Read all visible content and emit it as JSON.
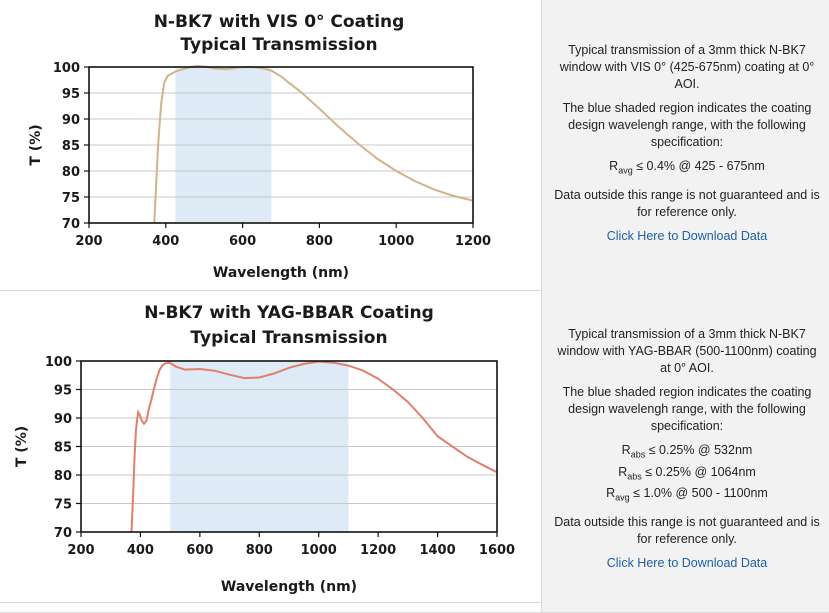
{
  "chart_data": [
    {
      "type": "line",
      "title": "N-BK7 with VIS 0° Coating",
      "subtitle": "Typical Transmission",
      "xlabel": "Wavelength (nm)",
      "ylabel": "T (%)",
      "xlim": [
        200,
        1200
      ],
      "ylim": [
        70,
        100
      ],
      "xticks": [
        200,
        400,
        600,
        800,
        1000,
        1200
      ],
      "yticks": [
        70,
        75,
        80,
        85,
        90,
        95,
        100
      ],
      "grid": true,
      "line_color": "#d2b48c",
      "shade_color": "#deebf6",
      "shaded_region": [
        425,
        675
      ],
      "series": [
        {
          "x": [
            370,
            374,
            380,
            388,
            396,
            405,
            415,
            425,
            440,
            460,
            480,
            500,
            530,
            560,
            590,
            620,
            650,
            675,
            700,
            720,
            750,
            800,
            850,
            900,
            950,
            1000,
            1050,
            1100,
            1150,
            1200
          ],
          "y": [
            70,
            76,
            85,
            93,
            97,
            98.3,
            98.7,
            99.1,
            99.5,
            99.9,
            100.2,
            100.1,
            99.7,
            99.6,
            99.9,
            100.0,
            99.8,
            99.3,
            98.2,
            97.0,
            95.3,
            92.0,
            88.5,
            85.3,
            82.4,
            80.0,
            78.0,
            76.4,
            75.2,
            74.3
          ]
        }
      ]
    },
    {
      "type": "line",
      "title": "N-BK7 with YAG-BBAR Coating",
      "subtitle": "Typical Transmission",
      "xlabel": "Wavelength (nm)",
      "ylabel": "T (%)",
      "xlim": [
        200,
        1600
      ],
      "ylim": [
        70,
        100
      ],
      "xticks": [
        200,
        400,
        600,
        800,
        1000,
        1200,
        1400,
        1600
      ],
      "yticks": [
        70,
        75,
        80,
        85,
        90,
        95,
        100
      ],
      "grid": true,
      "line_color": "#e0806b",
      "shade_color": "#deebf6",
      "shaded_region": [
        500,
        1100
      ],
      "series": [
        {
          "x": [
            370,
            375,
            380,
            385,
            392,
            398,
            405,
            412,
            420,
            428,
            436,
            445,
            455,
            465,
            475,
            485,
            495,
            505,
            520,
            550,
            600,
            650,
            700,
            750,
            800,
            850,
            900,
            950,
            1000,
            1050,
            1100,
            1150,
            1200,
            1250,
            1300,
            1350,
            1400,
            1450,
            1500,
            1550,
            1600
          ],
          "y": [
            70,
            76,
            83,
            88,
            91,
            90.5,
            89.5,
            89.0,
            89.5,
            91.5,
            93.0,
            95.0,
            97.0,
            98.5,
            99.3,
            99.6,
            99.7,
            99.5,
            99.0,
            98.5,
            98.6,
            98.3,
            97.6,
            97.0,
            97.1,
            97.8,
            98.8,
            99.5,
            99.9,
            99.7,
            99.2,
            98.3,
            96.9,
            95.0,
            92.8,
            90.0,
            86.8,
            85.0,
            83.2,
            81.8,
            80.5
          ]
        }
      ]
    }
  ],
  "descriptions": [
    {
      "intro": "Typical transmission of a 3mm thick N-BK7 window with VIS 0° (425-675nm) coating at 0° AOI.",
      "shade_note": "The blue shaded region indicates the coating design wavelengh range, with the following specification:",
      "specs": [
        {
          "sym": "R",
          "sub": "avg",
          "text": "≤ 0.4% @ 425 - 675nm"
        }
      ],
      "disclaimer": "Data outside this range is not guaranteed and is for reference only.",
      "download_label": "Click Here to Download Data"
    },
    {
      "intro": "Typical transmission of a 3mm thick N-BK7 window with YAG-BBAR (500-1100nm) coating at 0° AOI.",
      "shade_note": "The blue shaded region indicates the coating design wavelengh range, with the following specification:",
      "specs": [
        {
          "sym": "R",
          "sub": "abs",
          "text": "≤ 0.25% @ 532nm"
        },
        {
          "sym": "R",
          "sub": "abs",
          "text": "≤ 0.25% @ 1064nm"
        },
        {
          "sym": "R",
          "sub": "avg",
          "text": "≤ 1.0% @ 500 - 1100nm"
        }
      ],
      "disclaimer": "Data outside this range is not guaranteed and is for reference only.",
      "download_label": "Click Here to Download Data"
    }
  ]
}
